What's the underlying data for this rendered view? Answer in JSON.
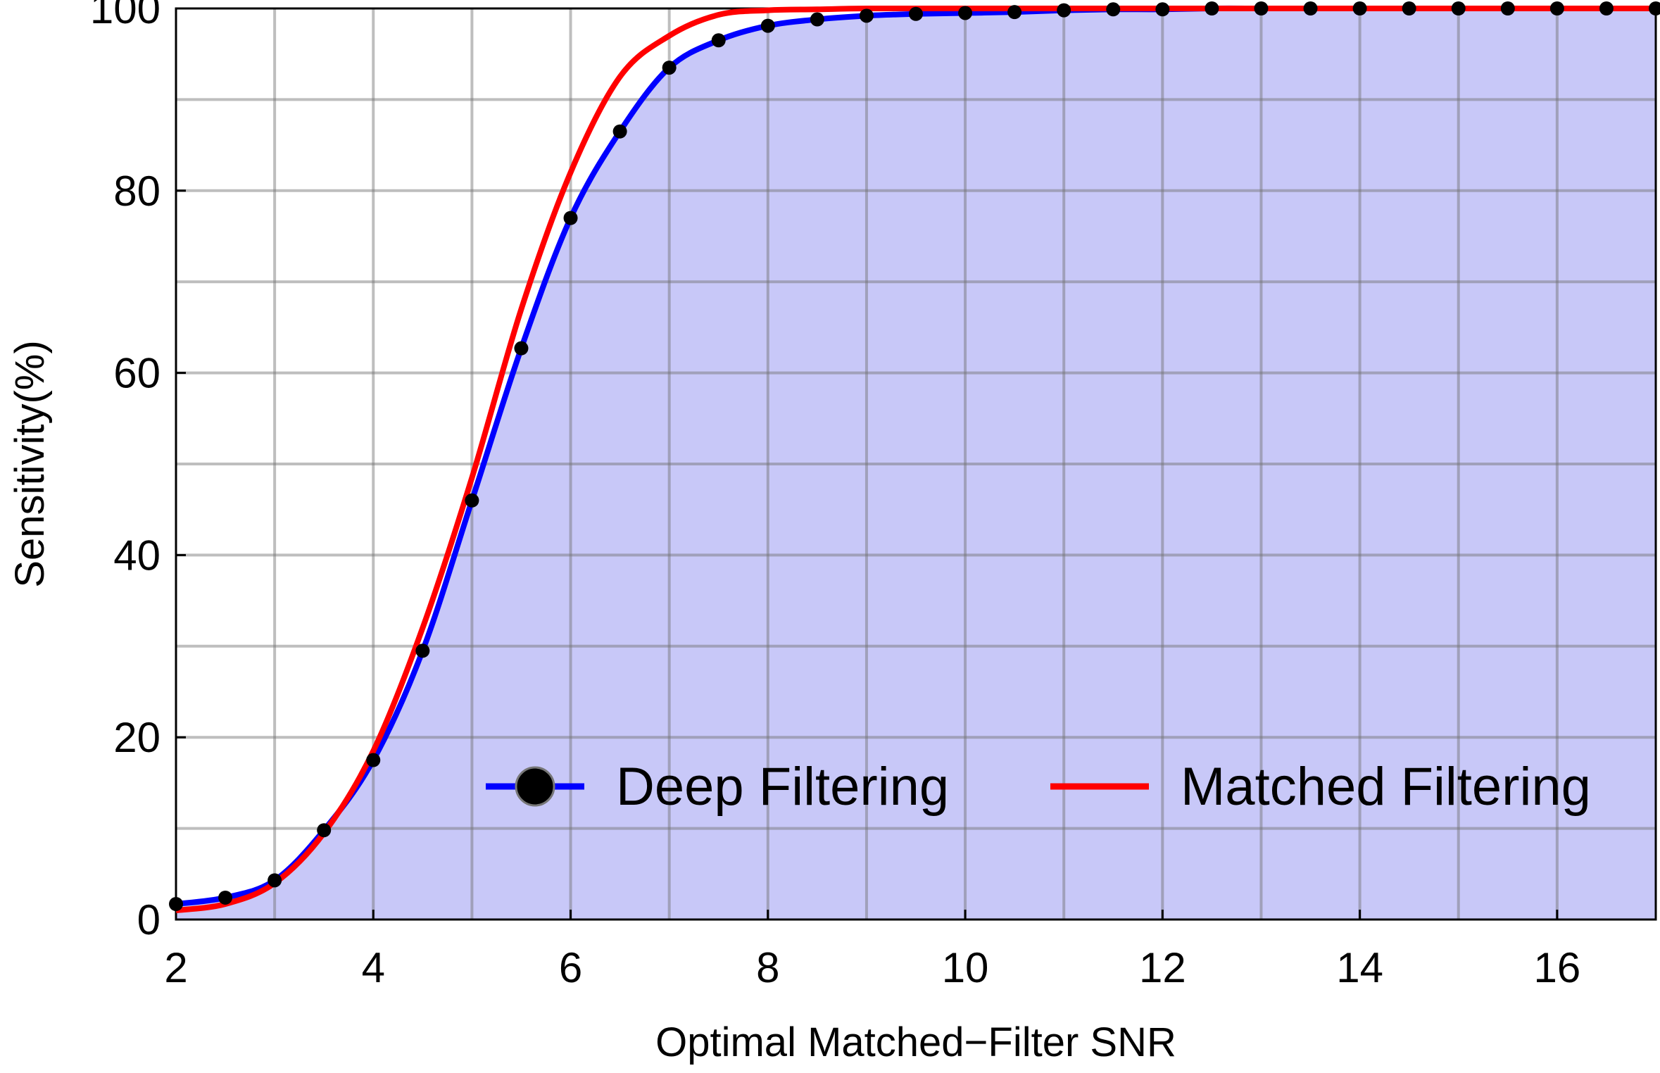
{
  "chart_data": {
    "type": "line",
    "title": "",
    "xlabel": "Optimal Matched−Filter SNR",
    "ylabel": "Sensitivity(%)",
    "xlim": [
      2,
      17
    ],
    "ylim": [
      0,
      100
    ],
    "xticks": [
      2,
      4,
      6,
      8,
      10,
      12,
      14,
      16
    ],
    "yticks": [
      0,
      20,
      40,
      60,
      80,
      100
    ],
    "grid": true,
    "legend_position": "bottom-right",
    "fill_under": "Deep Filtering",
    "colors": {
      "deep": "#0000ff",
      "matched": "#ff0000",
      "fill": "#c8c8f8",
      "marker": "#000000"
    },
    "series": [
      {
        "name": "Deep Filtering",
        "marker": "circle",
        "x": [
          2,
          2.5,
          3,
          3.5,
          4,
          4.5,
          5,
          5.5,
          6,
          6.5,
          7,
          7.5,
          8,
          8.5,
          9,
          9.5,
          10,
          10.5,
          11,
          11.5,
          12,
          12.5,
          13,
          13.5,
          14,
          14.5,
          15,
          15.5,
          16,
          16.5,
          17
        ],
        "y": [
          1.7,
          2.4,
          4.3,
          9.8,
          17.5,
          29.5,
          46.0,
          62.7,
          77.0,
          86.5,
          93.5,
          96.5,
          98.1,
          98.8,
          99.2,
          99.4,
          99.5,
          99.6,
          99.8,
          99.9,
          99.9,
          100,
          100,
          100,
          100,
          100,
          100,
          100,
          100,
          100,
          100
        ]
      },
      {
        "name": "Matched Filtering",
        "marker": "none",
        "x": [
          2,
          2.5,
          3,
          3.5,
          4,
          4.5,
          5,
          5.5,
          6,
          6.5,
          7,
          7.5,
          8,
          8.5,
          9,
          10,
          11,
          12,
          13,
          14,
          15,
          16,
          17
        ],
        "y": [
          1.0,
          1.7,
          4.0,
          9.5,
          18.5,
          32.0,
          48.5,
          67.0,
          82.0,
          92.5,
          97.0,
          99.3,
          99.8,
          99.9,
          100,
          100,
          100,
          100,
          100,
          100,
          100,
          100,
          100
        ]
      }
    ]
  }
}
